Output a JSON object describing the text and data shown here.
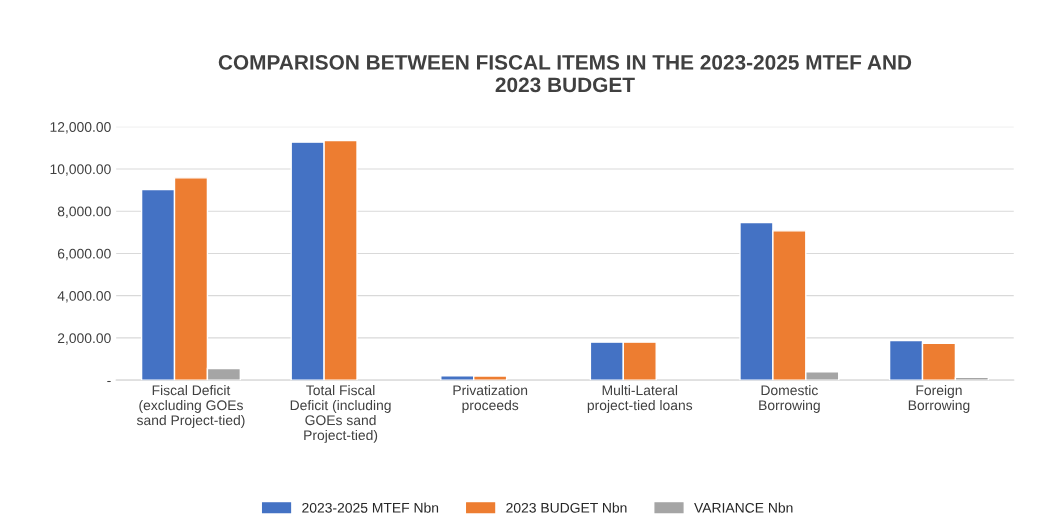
{
  "chart_data": {
    "type": "bar",
    "title": "COMPARISON BETWEEN FISCAL ITEMS IN THE 2023-2025 MTEF AND\n2023 BUDGET",
    "categories": [
      "Fiscal Deficit\n(excluding GOEs\nsand Project-tied)",
      "Total Fiscal\nDeficit (including\nGOEs sand\nProject-tied)",
      "Privatization\nproceeds",
      "Multi-Lateral\nproject-tied loans",
      "Domestic\nBorrowing",
      "Foreign\nBorrowing"
    ],
    "series": [
      {
        "name": "2023-2025 MTEF Nbn",
        "color": "#4472c4",
        "values": [
          9030,
          11270,
          210,
          1800,
          7460,
          1880
        ]
      },
      {
        "name": "2023 BUDGET Nbn",
        "color": "#ed7d31",
        "values": [
          9580,
          11350,
          200,
          1800,
          7070,
          1750
        ]
      },
      {
        "name": "VARIANCE Nbn",
        "color": "#a5a5a5",
        "values": [
          550,
          null,
          null,
          null,
          390,
          130
        ]
      }
    ],
    "ylim": [
      0,
      12000
    ],
    "yticks": [
      {
        "value": 0,
        "label": "-"
      },
      {
        "value": 2000,
        "label": "2,000.00"
      },
      {
        "value": 4000,
        "label": "4,000.00"
      },
      {
        "value": 6000,
        "label": "6,000.00"
      },
      {
        "value": 8000,
        "label": "8,000.00"
      },
      {
        "value": 10000,
        "label": "10,000.00"
      },
      {
        "value": 12000,
        "label": "12,000.00"
      }
    ],
    "grid": "y",
    "legend": "bottom"
  }
}
